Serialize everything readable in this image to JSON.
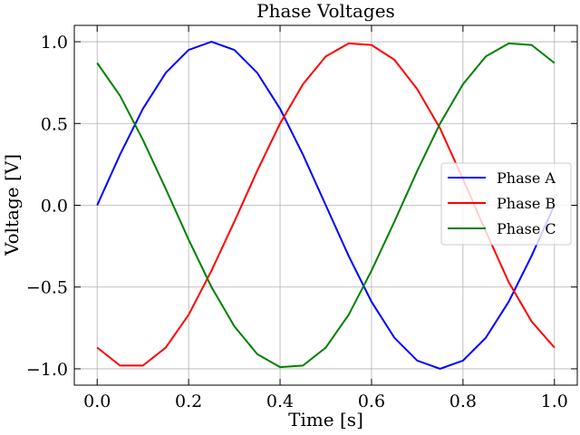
{
  "chart_data": {
    "type": "line",
    "title": "Phase Voltages",
    "xlabel": "Time [s]",
    "ylabel": "Voltage [V]",
    "xlim": [
      -0.05,
      1.05
    ],
    "ylim": [
      -1.1,
      1.1
    ],
    "xticks": [
      0.0,
      0.2,
      0.4,
      0.6,
      0.8,
      1.0
    ],
    "xtick_labels": [
      "0.0",
      "0.2",
      "0.4",
      "0.6",
      "0.8",
      "1.0"
    ],
    "yticks": [
      -1.0,
      -0.5,
      0.0,
      0.5,
      1.0
    ],
    "ytick_labels": [
      "−1.0",
      "−0.5",
      "0.0",
      "0.5",
      "1.0"
    ],
    "grid": true,
    "legend_position": "center-right",
    "x": [
      0.0,
      0.05,
      0.1,
      0.15,
      0.2,
      0.25,
      0.3,
      0.35,
      0.4,
      0.45,
      0.5,
      0.55,
      0.6,
      0.65,
      0.7,
      0.75,
      0.8,
      0.85,
      0.9,
      0.95,
      1.0
    ],
    "series": [
      {
        "name": "Phase A",
        "color": "#0000ff",
        "values": [
          0.0,
          0.31,
          0.59,
          0.81,
          0.95,
          1.0,
          0.95,
          0.81,
          0.59,
          0.31,
          0.0,
          -0.31,
          -0.59,
          -0.81,
          -0.95,
          -1.0,
          -0.95,
          -0.81,
          -0.59,
          -0.31,
          0.0
        ]
      },
      {
        "name": "Phase B",
        "color": "#ff0000",
        "values": [
          -0.87,
          -0.98,
          -0.98,
          -0.87,
          -0.67,
          -0.4,
          -0.1,
          0.21,
          0.5,
          0.74,
          0.91,
          0.99,
          0.98,
          0.89,
          0.71,
          0.47,
          0.16,
          -0.16,
          -0.47,
          -0.71,
          -0.87
        ]
      },
      {
        "name": "Phase C",
        "color": "#008000",
        "values": [
          0.87,
          0.67,
          0.4,
          0.1,
          -0.21,
          -0.5,
          -0.74,
          -0.91,
          -0.99,
          -0.98,
          -0.87,
          -0.67,
          -0.4,
          -0.1,
          0.21,
          0.5,
          0.74,
          0.91,
          0.99,
          0.98,
          0.87
        ]
      }
    ]
  }
}
